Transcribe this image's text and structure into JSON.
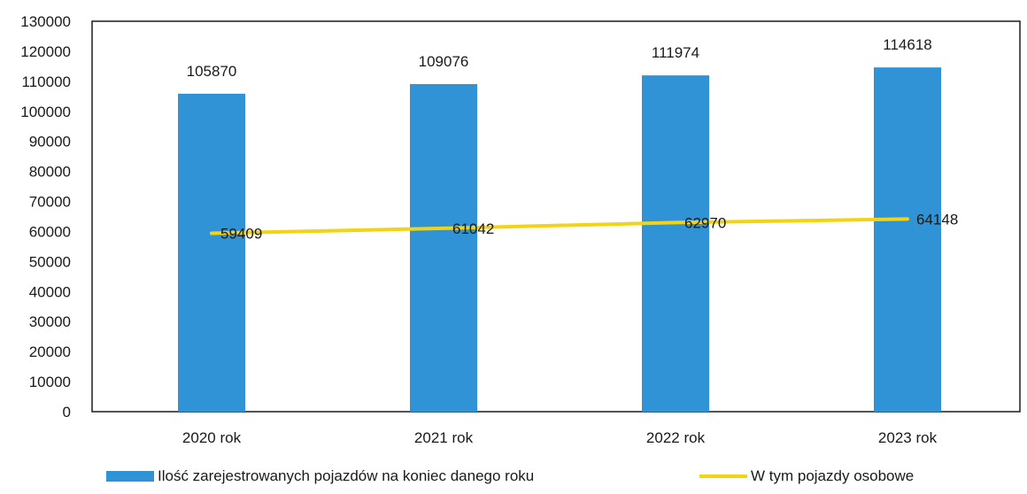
{
  "chart_data": {
    "type": "bar",
    "categories": [
      "2020 rok",
      "2021 rok",
      "2022 rok",
      "2023 rok"
    ],
    "series": [
      {
        "name": "Ilość zarejestrowanych  pojazdów na koniec danego roku",
        "kind": "bar",
        "color": "#2f93d5",
        "values": [
          105870,
          109076,
          111974,
          114618
        ],
        "labels": [
          "105870",
          "109076",
          "111974",
          "114618"
        ]
      },
      {
        "name": "W tym pojazdy osobowe",
        "kind": "line",
        "color": "#f2d414",
        "values": [
          59409,
          61042,
          62970,
          64148
        ],
        "labels": [
          "59409",
          "61042",
          "62970",
          "64148"
        ]
      }
    ],
    "y_ticks": [
      "0",
      "10000",
      "20000",
      "30000",
      "40000",
      "50000",
      "60000",
      "70000",
      "80000",
      "90000",
      "100000",
      "110000",
      "120000",
      "130000"
    ],
    "ylim": [
      0,
      130000
    ],
    "grid": false,
    "legend_position": "bottom"
  }
}
